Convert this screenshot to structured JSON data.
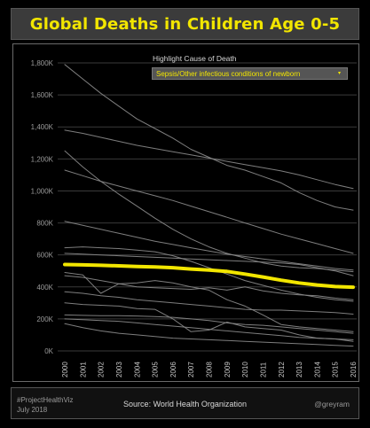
{
  "title": "Global Deaths in Children Age 0-5",
  "filter": {
    "label": "Highlight Cause of Death",
    "selected": "Sepsis/Other infectious conditions of newborn",
    "caret": "▾"
  },
  "footer": {
    "tag_line1": "#ProjectHealthViz",
    "tag_line2": "July 2018",
    "source": "Source: World Health Organization",
    "handle": "@greyram"
  },
  "colors": {
    "title": "#f2e600",
    "highlight": "#f2e600",
    "lines": "#8c8c8c",
    "grid": "#3a3a3a",
    "background": "#000000"
  },
  "chart_data": {
    "type": "line",
    "title": "Global Deaths in Children Age 0-5",
    "xlabel": "",
    "ylabel": "",
    "x": [
      "2000",
      "2001",
      "2002",
      "2003",
      "2004",
      "2005",
      "2006",
      "2007",
      "2008",
      "2009",
      "2010",
      "2011",
      "2012",
      "2013",
      "2014",
      "2015",
      "2016"
    ],
    "ylim": [
      0,
      1850000
    ],
    "yticks": [
      0,
      200000,
      400000,
      600000,
      800000,
      1000000,
      1200000,
      1400000,
      1600000,
      1800000
    ],
    "ytick_labels": [
      "0K",
      "200K",
      "400K",
      "600K",
      "800K",
      "1,000K",
      "1,200K",
      "1,400K",
      "1,600K",
      "1,800K"
    ],
    "grid": true,
    "highlight_index": 0,
    "series": [
      {
        "values": [
          540000,
          538000,
          535000,
          532000,
          528000,
          525000,
          520000,
          512000,
          505000,
          497000,
          480000,
          462000,
          442000,
          425000,
          412000,
          402000,
          398000
        ]
      },
      {
        "values": [
          1790000,
          1700000,
          1610000,
          1530000,
          1450000,
          1390000,
          1330000,
          1260000,
          1210000,
          1160000,
          1130000,
          1090000,
          1050000,
          990000,
          940000,
          900000,
          880000
        ]
      },
      {
        "values": [
          1380000,
          1360000,
          1335000,
          1310000,
          1285000,
          1265000,
          1245000,
          1225000,
          1205000,
          1185000,
          1165000,
          1145000,
          1125000,
          1100000,
          1070000,
          1040000,
          1015000
        ]
      },
      {
        "values": [
          1250000,
          1150000,
          1060000,
          980000,
          905000,
          830000,
          760000,
          700000,
          650000,
          610000,
          580000,
          550000,
          530000,
          520000,
          515000,
          505000,
          495000
        ]
      },
      {
        "values": [
          1130000,
          1095000,
          1060000,
          1030000,
          1000000,
          970000,
          940000,
          905000,
          870000,
          835000,
          800000,
          765000,
          730000,
          700000,
          670000,
          640000,
          610000
        ]
      },
      {
        "values": [
          810000,
          785000,
          760000,
          735000,
          710000,
          685000,
          665000,
          645000,
          625000,
          605000,
          590000,
          575000,
          560000,
          545000,
          530000,
          515000,
          505000
        ]
      },
      {
        "values": [
          645000,
          650000,
          645000,
          640000,
          630000,
          620000,
          595000,
          560000,
          520000,
          480000,
          440000,
          410000,
          380000,
          355000,
          335000,
          320000,
          310000
        ]
      },
      {
        "values": [
          610000,
          605000,
          600000,
          595000,
          590000,
          585000,
          580000,
          575000,
          570000,
          565000,
          560000,
          555000,
          550000,
          540000,
          520000,
          500000,
          470000
        ]
      },
      {
        "values": [
          490000,
          475000,
          360000,
          420000,
          400000,
          395000,
          390000,
          385000,
          395000,
          380000,
          400000,
          375000,
          360000,
          350000,
          345000,
          330000,
          320000
        ]
      },
      {
        "values": [
          470000,
          460000,
          440000,
          420000,
          425000,
          440000,
          425000,
          400000,
          380000,
          320000,
          280000,
          225000,
          165000,
          150000,
          140000,
          130000,
          120000
        ]
      },
      {
        "values": [
          370000,
          360000,
          345000,
          335000,
          320000,
          310000,
          300000,
          290000,
          280000,
          270000,
          260000,
          255000,
          255000,
          250000,
          245000,
          240000,
          230000
        ]
      },
      {
        "values": [
          300000,
          290000,
          285000,
          280000,
          265000,
          260000,
          200000,
          120000,
          130000,
          180000,
          150000,
          140000,
          130000,
          100000,
          80000,
          75000,
          60000
        ]
      },
      {
        "values": [
          225000,
          222000,
          220000,
          220000,
          218000,
          215000,
          210000,
          200000,
          190000,
          175000,
          165000,
          160000,
          150000,
          140000,
          130000,
          120000,
          110000
        ]
      },
      {
        "values": [
          200000,
          195000,
          190000,
          185000,
          175000,
          165000,
          155000,
          145000,
          135000,
          125000,
          115000,
          105000,
          95000,
          85000,
          80000,
          75000,
          70000
        ]
      },
      {
        "values": [
          170000,
          145000,
          125000,
          110000,
          100000,
          90000,
          80000,
          75000,
          70000,
          65000,
          60000,
          55000,
          50000,
          45000,
          40000,
          35000,
          30000
        ]
      }
    ]
  }
}
